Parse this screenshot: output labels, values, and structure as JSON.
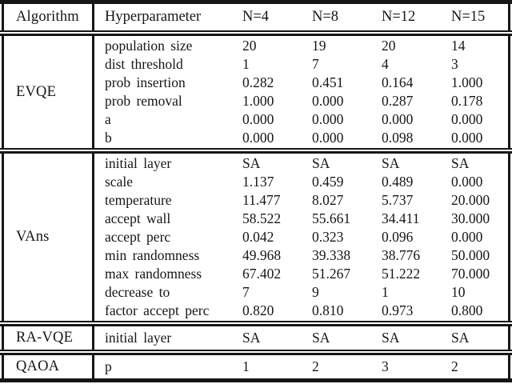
{
  "table": {
    "columns": [
      "Algorithm",
      "Hyperparameter",
      "N=4",
      "N=8",
      "N=12",
      "N=15"
    ],
    "sections": [
      {
        "algorithm": "EVQE",
        "rows": [
          {
            "name": "population size",
            "values": [
              "20",
              "19",
              "20",
              "14"
            ]
          },
          {
            "name": "dist threshold",
            "values": [
              "1",
              "7",
              "4",
              "3"
            ]
          },
          {
            "name": "prob insertion",
            "values": [
              "0.282",
              "0.451",
              "0.164",
              "1.000"
            ]
          },
          {
            "name": "prob removal",
            "values": [
              "1.000",
              "0.000",
              "0.287",
              "0.178"
            ]
          },
          {
            "name": "a",
            "values": [
              "0.000",
              "0.000",
              "0.000",
              "0.000"
            ]
          },
          {
            "name": "b",
            "values": [
              "0.000",
              "0.000",
              "0.098",
              "0.000"
            ]
          }
        ]
      },
      {
        "algorithm": "VAns",
        "rows": [
          {
            "name": "initial layer",
            "values": [
              "SA",
              "SA",
              "SA",
              "SA"
            ]
          },
          {
            "name": "scale",
            "values": [
              "1.137",
              "0.459",
              "0.489",
              "0.000"
            ]
          },
          {
            "name": "temperature",
            "values": [
              "11.477",
              "8.027",
              "5.737",
              "20.000"
            ]
          },
          {
            "name": "accept wall",
            "values": [
              "58.522",
              "55.661",
              "34.411",
              "30.000"
            ]
          },
          {
            "name": "accept perc",
            "values": [
              "0.042",
              "0.323",
              "0.096",
              "0.000"
            ]
          },
          {
            "name": "min randomness",
            "values": [
              "49.968",
              "39.338",
              "38.776",
              "50.000"
            ]
          },
          {
            "name": "max randomness",
            "values": [
              "67.402",
              "51.267",
              "51.222",
              "70.000"
            ]
          },
          {
            "name": "decrease to",
            "values": [
              "7",
              "9",
              "1",
              "10"
            ]
          },
          {
            "name": "factor accept perc",
            "values": [
              "0.820",
              "0.810",
              "0.973",
              "0.800"
            ]
          }
        ]
      },
      {
        "algorithm": "RA-VQE",
        "rows": [
          {
            "name": "initial layer",
            "values": [
              "SA",
              "SA",
              "SA",
              "SA"
            ]
          }
        ]
      },
      {
        "algorithm": "QAOA",
        "rows": [
          {
            "name": "p",
            "values": [
              "1",
              "2",
              "3",
              "2"
            ]
          }
        ]
      }
    ]
  },
  "colors": {
    "text": "#161616",
    "rule": "#161616",
    "background": "#ffffff"
  }
}
